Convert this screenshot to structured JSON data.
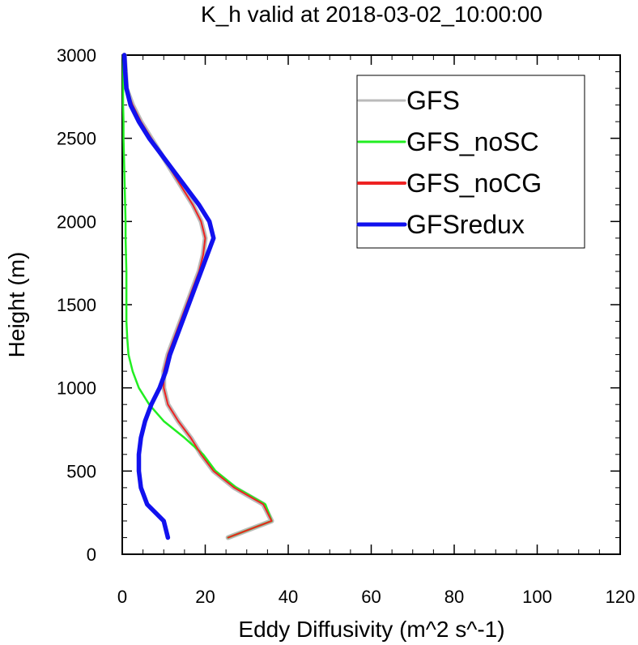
{
  "chart_data": {
    "type": "line",
    "title": "K_h valid at 2018-03-02_10:00:00",
    "xlabel": "Eddy Diffusivity (m^2 s^-1)",
    "ylabel": "Height (m)",
    "xlim": [
      0,
      120
    ],
    "ylim": [
      0,
      3000
    ],
    "xticks": [
      0,
      20,
      40,
      60,
      80,
      100,
      120
    ],
    "yticks": [
      0,
      500,
      1000,
      1500,
      2000,
      2500,
      3000
    ],
    "grid": false,
    "legend_position": "top-right",
    "series": [
      {
        "name": "GFS",
        "color": "#bbbbbb",
        "points": [
          [
            25.5,
            100
          ],
          [
            36,
            200
          ],
          [
            34,
            300
          ],
          [
            27,
            400
          ],
          [
            22,
            500
          ],
          [
            19,
            600
          ],
          [
            16.5,
            700
          ],
          [
            13.5,
            800
          ],
          [
            11,
            900
          ],
          [
            10,
            1000
          ],
          [
            10,
            1100
          ],
          [
            11,
            1200
          ],
          [
            12.5,
            1300
          ],
          [
            14,
            1400
          ],
          [
            15.5,
            1500
          ],
          [
            17,
            1600
          ],
          [
            18.5,
            1700
          ],
          [
            19.5,
            1800
          ],
          [
            20,
            1900
          ],
          [
            19,
            2000
          ],
          [
            17,
            2100
          ],
          [
            14.5,
            2200
          ],
          [
            12,
            2300
          ],
          [
            9.5,
            2400
          ],
          [
            7,
            2500
          ],
          [
            4.5,
            2600
          ],
          [
            2.5,
            2700
          ],
          [
            1,
            2800
          ],
          [
            0.8,
            2900
          ],
          [
            0.5,
            3000
          ]
        ]
      },
      {
        "name": "GFS_noSC",
        "color": "#22ee22",
        "points": [
          [
            25.5,
            100
          ],
          [
            36,
            200
          ],
          [
            34.5,
            300
          ],
          [
            27.5,
            400
          ],
          [
            22.5,
            500
          ],
          [
            19.5,
            600
          ],
          [
            15,
            700
          ],
          [
            10,
            800
          ],
          [
            6.5,
            900
          ],
          [
            4,
            1000
          ],
          [
            2.5,
            1100
          ],
          [
            1.5,
            1200
          ],
          [
            1.2,
            1300
          ],
          [
            1,
            1400
          ],
          [
            1,
            1500
          ],
          [
            1,
            1600
          ],
          [
            1,
            1700
          ],
          [
            0.9,
            1800
          ],
          [
            0.8,
            1900
          ],
          [
            0.8,
            2000
          ],
          [
            0.7,
            2100
          ],
          [
            0.6,
            2200
          ],
          [
            0.5,
            2300
          ],
          [
            0.4,
            2400
          ],
          [
            0.3,
            2500
          ],
          [
            0.3,
            2600
          ],
          [
            0.2,
            2700
          ],
          [
            0.2,
            2800
          ],
          [
            0.2,
            2900
          ],
          [
            0.2,
            3000
          ]
        ]
      },
      {
        "name": "GFS_noCG",
        "color": "#ee2222",
        "points": [
          [
            25.5,
            100
          ],
          [
            36,
            200
          ],
          [
            34,
            300
          ],
          [
            27,
            400
          ],
          [
            22,
            500
          ],
          [
            19,
            600
          ],
          [
            16.5,
            700
          ],
          [
            13.5,
            800
          ],
          [
            11,
            900
          ],
          [
            10,
            1000
          ],
          [
            10,
            1100
          ],
          [
            11,
            1200
          ],
          [
            12.5,
            1300
          ],
          [
            14,
            1400
          ],
          [
            15.5,
            1500
          ],
          [
            17,
            1600
          ],
          [
            18.5,
            1700
          ],
          [
            19.5,
            1800
          ],
          [
            20,
            1900
          ],
          [
            19,
            2000
          ],
          [
            17,
            2100
          ],
          [
            14.5,
            2200
          ],
          [
            12,
            2300
          ],
          [
            9.5,
            2400
          ],
          [
            7,
            2500
          ],
          [
            4.5,
            2600
          ],
          [
            2.5,
            2700
          ],
          [
            1,
            2800
          ],
          [
            0.8,
            2900
          ],
          [
            0.5,
            3000
          ]
        ]
      },
      {
        "name": "GFSredux",
        "color": "#1111ee",
        "points": [
          [
            11,
            100
          ],
          [
            10,
            200
          ],
          [
            6,
            300
          ],
          [
            4.5,
            400
          ],
          [
            4,
            500
          ],
          [
            4,
            600
          ],
          [
            4.5,
            700
          ],
          [
            5.5,
            800
          ],
          [
            7,
            900
          ],
          [
            9,
            1000
          ],
          [
            10.5,
            1100
          ],
          [
            11.5,
            1200
          ],
          [
            13,
            1300
          ],
          [
            14.5,
            1400
          ],
          [
            16,
            1500
          ],
          [
            17.5,
            1600
          ],
          [
            19,
            1700
          ],
          [
            20.5,
            1800
          ],
          [
            22,
            1900
          ],
          [
            21,
            2000
          ],
          [
            18.5,
            2100
          ],
          [
            15.5,
            2200
          ],
          [
            12.5,
            2300
          ],
          [
            9.5,
            2400
          ],
          [
            6.5,
            2500
          ],
          [
            4,
            2600
          ],
          [
            2,
            2700
          ],
          [
            1,
            2800
          ],
          [
            0.7,
            2900
          ],
          [
            0.5,
            3000
          ]
        ]
      }
    ]
  }
}
